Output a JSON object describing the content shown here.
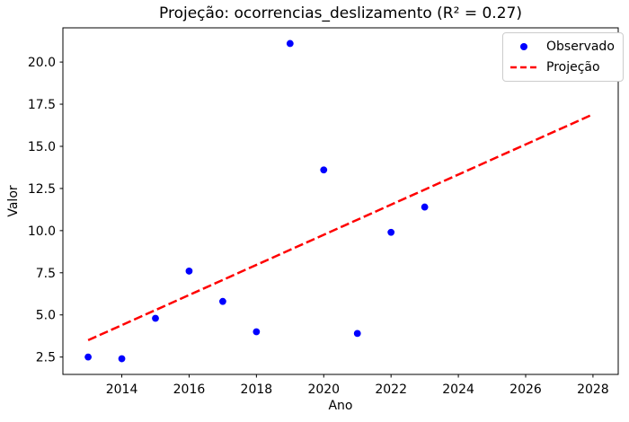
{
  "figure": {
    "title": "Projeção: ocorrencias_deslizamento (R² = 0.27)",
    "xlabel": "Ano",
    "ylabel": "Valor"
  },
  "legend": {
    "position": "upper right",
    "items": [
      {
        "label": "Observado",
        "marker": "dot",
        "color": "#0000ff"
      },
      {
        "label": "Projeção",
        "marker": "dashed-line",
        "color": "#ff0000"
      }
    ]
  },
  "colors": {
    "observed_points": "#0000ff",
    "projection_line": "#ff0000",
    "axes": "#000000",
    "background": "#ffffff",
    "legend_border": "#cccccc"
  },
  "chart_data": {
    "type": "scatter",
    "title": "Projeção: ocorrencias_deslizamento (R² = 0.27)",
    "xlabel": "Ano",
    "ylabel": "Valor",
    "grid": false,
    "legend_position": "upper right",
    "xlim": [
      2012.25,
      2028.75
    ],
    "ylim": [
      1.47,
      22.03
    ],
    "x_ticks": [
      2014,
      2016,
      2018,
      2020,
      2022,
      2024,
      2026,
      2028
    ],
    "y_ticks": [
      2.5,
      5.0,
      7.5,
      10.0,
      12.5,
      15.0,
      17.5,
      20.0
    ],
    "series": [
      {
        "name": "Observado",
        "kind": "scatter",
        "color": "#0000ff",
        "x": [
          2013,
          2014,
          2015,
          2016,
          2017,
          2018,
          2019,
          2020,
          2021,
          2022,
          2023
        ],
        "y": [
          2.5,
          2.4,
          4.8,
          7.6,
          5.8,
          4.0,
          21.1,
          13.6,
          3.9,
          9.9,
          11.4
        ]
      },
      {
        "name": "Projeção",
        "kind": "line",
        "style": "dashed",
        "color": "#ff0000",
        "x": [
          2013,
          2028
        ],
        "y": [
          3.5,
          16.9
        ]
      }
    ]
  }
}
